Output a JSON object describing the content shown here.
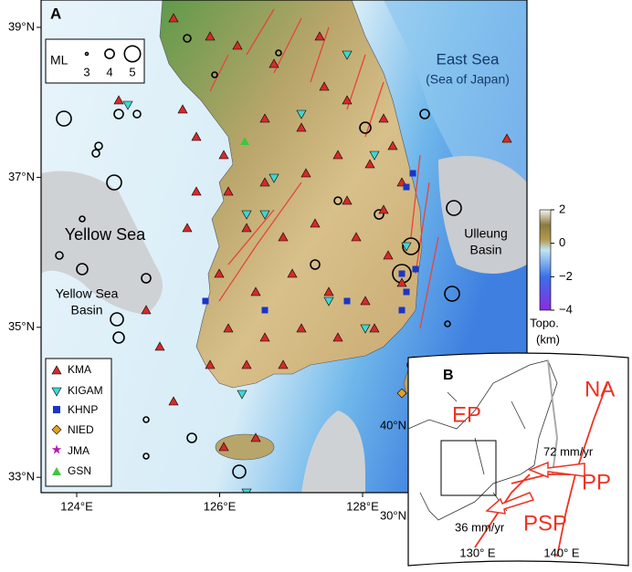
{
  "panel_a": {
    "label": "A",
    "lat_ticks": [
      {
        "value": 39,
        "label": "39°N"
      },
      {
        "value": 37,
        "label": "37°N"
      },
      {
        "value": 35,
        "label": "35°N"
      },
      {
        "value": 33,
        "label": "33°N"
      }
    ],
    "lon_ticks": [
      {
        "value": 124,
        "label": "124°E"
      },
      {
        "value": 126,
        "label": "126°E"
      },
      {
        "value": 128,
        "label": "128°E"
      }
    ],
    "regions": {
      "east_sea": "East Sea",
      "east_sea_alt": "(Sea of Japan)",
      "yellow_sea": "Yellow Sea",
      "yellow_sea_basin": [
        "Yellow Sea",
        "Basin"
      ],
      "ulleung_basin": [
        "Ulleung",
        "Basin"
      ]
    },
    "magnitude_legend": {
      "title": "ML",
      "values": [
        3,
        4,
        5
      ]
    },
    "colorbar": {
      "title": [
        "Topo.",
        "(km)"
      ],
      "lim": [
        -4,
        2
      ],
      "ticks": [
        2,
        0,
        {
          "value": -2,
          "label": "−2"
        },
        {
          "value": -4,
          "label": "−4"
        }
      ]
    },
    "station_legend": [
      "KMA",
      "KIGAM",
      "KHNP",
      "NIED",
      "JMA",
      "GSN"
    ]
  },
  "panel_b": {
    "label": "B",
    "plates": [
      "EP",
      "NA",
      "PP",
      "PSP"
    ],
    "rates": [
      "72 mm/yr",
      "36 mm/yr"
    ],
    "lat_labels": [
      "40°N",
      "30°N"
    ],
    "lon_labels": [
      "130° E",
      "140° E"
    ]
  }
}
